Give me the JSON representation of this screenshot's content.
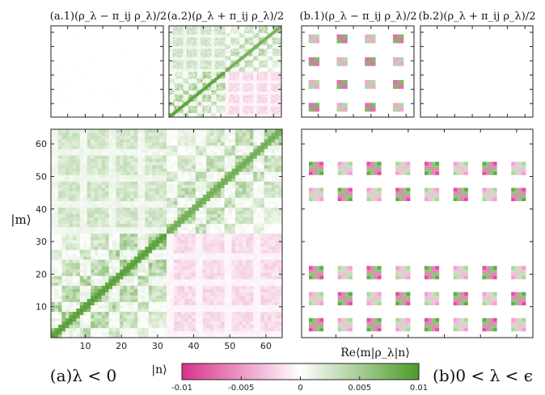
{
  "chart_data": {
    "type": "heatmap",
    "panel_titles": {
      "a1": "(a.1)(ρ_λ − π_ij ρ_λ)/2",
      "a2": "(a.2)(ρ_λ + π_ij ρ_λ)/2",
      "b1": "(b.1)(ρ_λ − π_ij ρ_λ)/2",
      "b2": "(b.2)(ρ_λ + π_ij ρ_λ)/2"
    },
    "y_axis_label": "|m⟩",
    "x_axis_label": "|n⟩",
    "colorbar_label": "Re⟨m|ρ_λ|n⟩",
    "caption_left": "(a)λ < 0",
    "caption_right": "(b)0 < λ < ϵ",
    "x_ticks": [
      10,
      20,
      30,
      40,
      50,
      60
    ],
    "y_ticks": [
      10,
      20,
      30,
      40,
      50,
      60
    ],
    "matrix_size": 64,
    "colorbar_ticks": [
      "-0.01",
      "-0.005",
      "0",
      "0.005",
      "0.01"
    ],
    "colorbar_range": [
      -0.01,
      0.01
    ],
    "colors": {
      "negative": "#d6338a",
      "zero": "#ffffff",
      "positive": "#4c9a2a",
      "frame": "#222222"
    }
  }
}
